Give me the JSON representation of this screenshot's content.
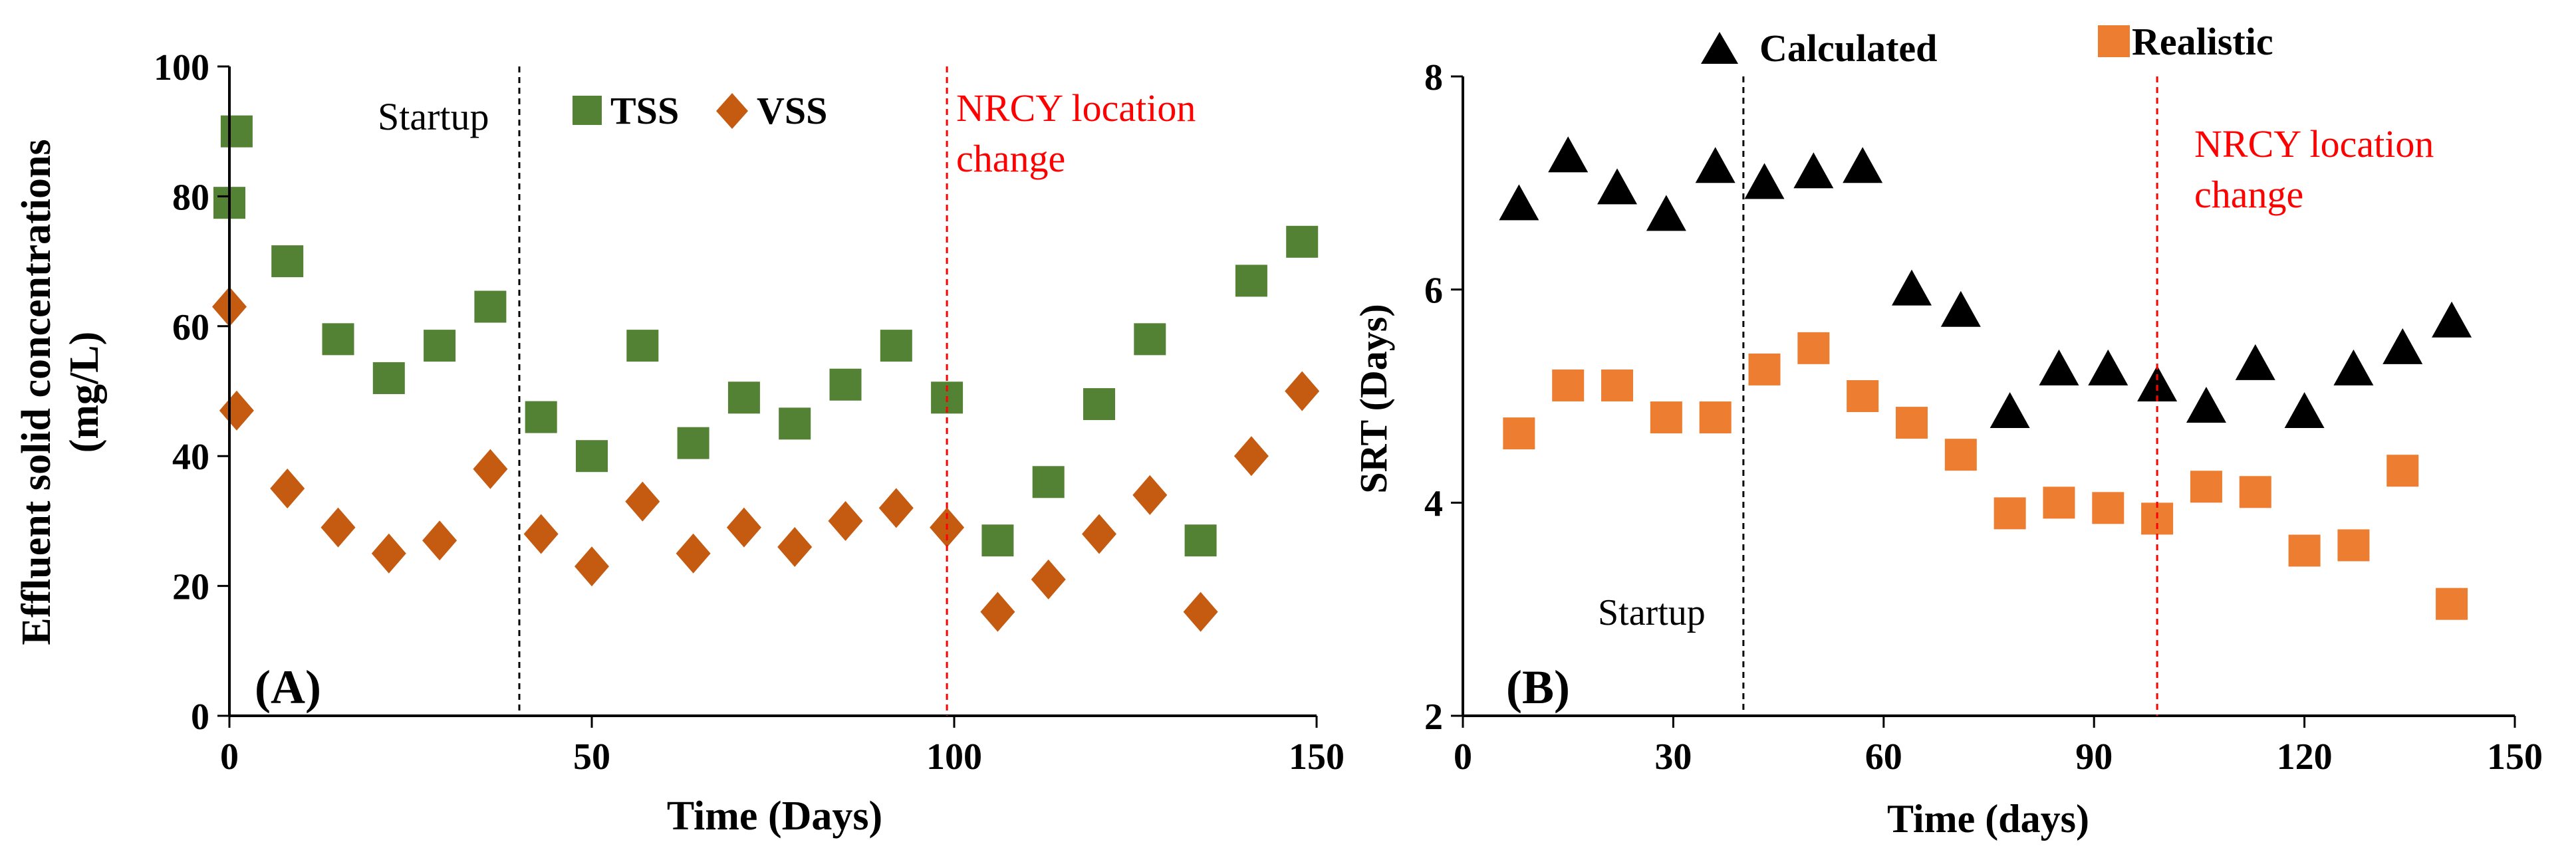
{
  "colors": {
    "tss": "#548235",
    "vss": "#C55A11",
    "calculated": "#000000",
    "realistic": "#ED7D31",
    "nrcy_line": "#FF0000",
    "startup_line": "#000000"
  },
  "chart_data": [
    {
      "panel": "(A)",
      "type": "scatter",
      "title": "",
      "xlabel": "Time (Days)",
      "ylabel_line1": "Effluent solid concentrations",
      "ylabel_line2": "(mg/L)",
      "xlim": [
        0,
        150
      ],
      "ylim": [
        0,
        100
      ],
      "xticks": [
        0,
        50,
        100,
        150
      ],
      "yticks": [
        0,
        20,
        40,
        60,
        80,
        100
      ],
      "grid": false,
      "annotations": {
        "startup_label": "Startup",
        "startup_x": 40,
        "nrcy_label_line1": "NRCY location",
        "nrcy_label_line2": "change",
        "nrcy_x": 99
      },
      "series": [
        {
          "name": "TSS",
          "marker": "square",
          "x": [
            0,
            1,
            8,
            15,
            22,
            29,
            36,
            43,
            50,
            57,
            64,
            71,
            78,
            85,
            92,
            99,
            106,
            113,
            120,
            127,
            134,
            141,
            148
          ],
          "y": [
            79,
            90,
            70,
            58,
            52,
            57,
            63,
            46,
            40,
            57,
            42,
            49,
            45,
            51,
            57,
            49,
            27,
            36,
            48,
            58,
            27,
            67,
            73
          ]
        },
        {
          "name": "VSS",
          "marker": "diamond",
          "x": [
            0,
            1,
            8,
            15,
            22,
            29,
            36,
            43,
            50,
            57,
            64,
            71,
            78,
            85,
            92,
            99,
            106,
            113,
            120,
            127,
            134,
            141,
            148
          ],
          "y": [
            63,
            47,
            35,
            29,
            25,
            27,
            38,
            28,
            23,
            33,
            25,
            29,
            26,
            30,
            32,
            29,
            16,
            21,
            28,
            34,
            16,
            40,
            50
          ]
        }
      ]
    },
    {
      "panel": "(B)",
      "type": "scatter",
      "title": "",
      "xlabel": "Time (days)",
      "ylabel": "SRT (Days)",
      "xlim": [
        0,
        150
      ],
      "ylim": [
        2,
        8
      ],
      "xticks": [
        0,
        30,
        60,
        90,
        120,
        150
      ],
      "yticks": [
        2,
        4,
        6,
        8
      ],
      "grid": false,
      "annotations": {
        "startup_label": "Startup",
        "startup_x": 40,
        "nrcy_label_line1": "NRCY location",
        "nrcy_label_line2": "change",
        "nrcy_x": 99
      },
      "series": [
        {
          "name": "Calculated",
          "marker": "triangle",
          "x": [
            8,
            15,
            22,
            29,
            36,
            43,
            50,
            57,
            64,
            71,
            78,
            85,
            92,
            99,
            106,
            113,
            120,
            127,
            134,
            141
          ],
          "y": [
            6.8,
            7.25,
            6.95,
            6.7,
            7.15,
            7.0,
            7.1,
            7.15,
            6.0,
            5.8,
            4.85,
            5.25,
            5.25,
            5.1,
            4.9,
            5.3,
            4.85,
            5.25,
            5.45,
            5.7
          ]
        },
        {
          "name": "Realistic",
          "marker": "square",
          "x": [
            8,
            15,
            22,
            29,
            36,
            43,
            50,
            57,
            64,
            71,
            78,
            85,
            92,
            99,
            106,
            113,
            120,
            127,
            134,
            141
          ],
          "y": [
            4.65,
            5.1,
            5.1,
            4.8,
            4.8,
            5.25,
            5.45,
            5.0,
            4.75,
            4.45,
            3.9,
            4.0,
            3.95,
            3.85,
            4.15,
            4.1,
            3.55,
            3.6,
            4.3,
            3.05
          ]
        }
      ]
    }
  ]
}
